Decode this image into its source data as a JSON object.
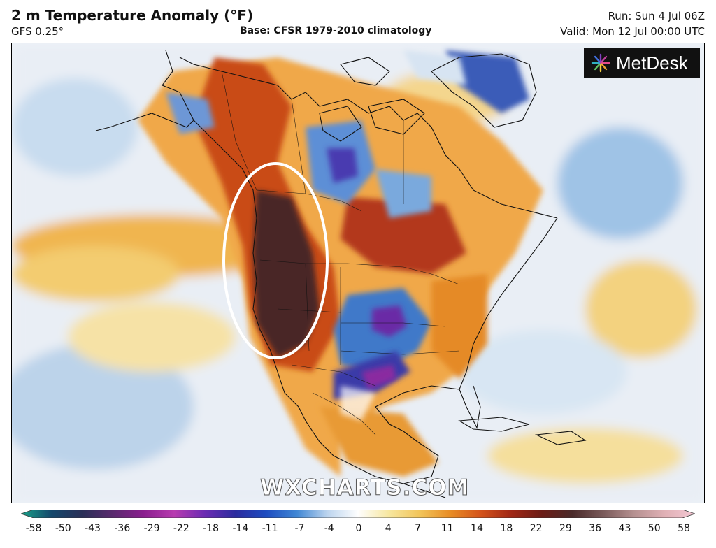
{
  "header": {
    "title": "2 m Temperature Anomaly (°F)",
    "model": "GFS 0.25°",
    "base": "Base: CFSR 1979-2010 climatology",
    "run": "Run: Sun 4 Jul 06Z",
    "valid": "Valid: Mon 12 Jul 00:00 UTC"
  },
  "logo": {
    "text": "MetDesk"
  },
  "watermark": "WXCHARTS.COM",
  "legend": {
    "ticks": [
      "-58",
      "-50",
      "-43",
      "-36",
      "-29",
      "-22",
      "-18",
      "-14",
      "-11",
      "-7",
      "-4",
      "0",
      "4",
      "7",
      "11",
      "14",
      "18",
      "22",
      "29",
      "36",
      "43",
      "50",
      "58"
    ],
    "colors": [
      "#1aa38a",
      "#14476b",
      "#2a2f57",
      "#5a2a6e",
      "#8a1e8e",
      "#b83cb0",
      "#6b2bb2",
      "#2b2b9e",
      "#1d4cc0",
      "#3f86d4",
      "#bcd4ee",
      "#fefefe",
      "#f7e7a0",
      "#f2c55a",
      "#e88d25",
      "#d4531b",
      "#a02716",
      "#6b1c16",
      "#4a2a2a",
      "#7a5a5a",
      "#b59090",
      "#e0b0b5",
      "#f4c8d4"
    ]
  }
}
